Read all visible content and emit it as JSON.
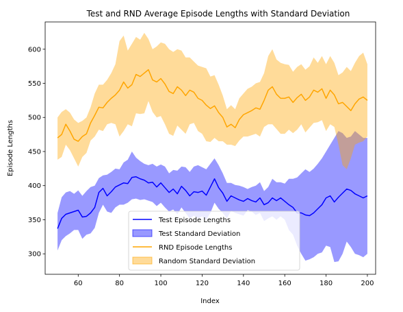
{
  "chart_data": {
    "type": "line",
    "title": "Test and RND Average Episode Lengths with Standard Deviation",
    "xlabel": "Index",
    "ylabel": "Episode Lengths",
    "xlim": [
      44,
      204
    ],
    "ylim": [
      270,
      640
    ],
    "xticks": [
      60,
      80,
      100,
      120,
      140,
      160,
      180,
      200
    ],
    "yticks": [
      300,
      350,
      400,
      450,
      500,
      550,
      600
    ],
    "grid": false,
    "legend_position": "bottom-center",
    "x": [
      50,
      52,
      54,
      56,
      58,
      60,
      62,
      64,
      66,
      68,
      70,
      72,
      74,
      76,
      78,
      80,
      82,
      84,
      86,
      88,
      90,
      92,
      94,
      96,
      98,
      100,
      102,
      104,
      106,
      108,
      110,
      112,
      114,
      116,
      118,
      120,
      122,
      124,
      126,
      128,
      130,
      132,
      134,
      136,
      138,
      140,
      142,
      144,
      146,
      148,
      150,
      152,
      154,
      156,
      158,
      160,
      162,
      164,
      166,
      168,
      170,
      172,
      174,
      176,
      178,
      180,
      182,
      184,
      186,
      188,
      190,
      192,
      194,
      196,
      198,
      200
    ],
    "series": [
      {
        "name": "Test Episode Lengths",
        "kind": "line",
        "color": "#0000ff",
        "values": [
          337,
          352,
          358,
          360,
          362,
          364,
          354,
          355,
          360,
          368,
          390,
          396,
          385,
          391,
          398,
          401,
          404,
          403,
          412,
          413,
          410,
          408,
          404,
          405,
          398,
          404,
          397,
          390,
          395,
          388,
          399,
          393,
          385,
          391,
          390,
          392,
          386,
          398,
          410,
          397,
          389,
          377,
          385,
          382,
          379,
          377,
          381,
          378,
          376,
          382,
          372,
          375,
          382,
          378,
          382,
          377,
          372,
          368,
          360,
          360,
          357,
          356,
          360,
          366,
          372,
          382,
          385,
          376,
          383,
          389,
          395,
          393,
          388,
          385,
          382,
          385
        ]
      },
      {
        "name": " Test Standard Deviation",
        "kind": "band",
        "color": "#0000ff",
        "opacity": 0.4,
        "upper": [
          360,
          383,
          390,
          392,
          388,
          393,
          385,
          392,
          398,
          400,
          411,
          415,
          416,
          420,
          425,
          424,
          434,
          438,
          450,
          441,
          436,
          432,
          430,
          432,
          428,
          431,
          428,
          418,
          423,
          422,
          428,
          427,
          420,
          428,
          430,
          427,
          424,
          432,
          440,
          430,
          418,
          404,
          404,
          401,
          400,
          398,
          395,
          398,
          400,
          405,
          392,
          398,
          410,
          405,
          405,
          403,
          410,
          410,
          412,
          418,
          424,
          420,
          425,
          432,
          440,
          450,
          460,
          470,
          480,
          477,
          470,
          472,
          480,
          475,
          470,
          470
        ],
        "lower": [
          305,
          320,
          326,
          330,
          335,
          335,
          322,
          328,
          330,
          338,
          360,
          372,
          362,
          360,
          368,
          372,
          372,
          375,
          380,
          381,
          379,
          380,
          378,
          376,
          370,
          375,
          368,
          362,
          365,
          358,
          368,
          360,
          352,
          356,
          352,
          355,
          350,
          360,
          375,
          366,
          360,
          352,
          363,
          360,
          358,
          356,
          364,
          362,
          357,
          360,
          348,
          352,
          355,
          350,
          355,
          350,
          335,
          328,
          312,
          300,
          290,
          292,
          295,
          300,
          302,
          312,
          310,
          288,
          289,
          300,
          318,
          310,
          300,
          298,
          295,
          300
        ]
      },
      {
        "name": "RND Episode Lengths",
        "kind": "line",
        "color": "#ffa500",
        "values": [
          470,
          475,
          490,
          480,
          468,
          465,
          472,
          476,
          492,
          503,
          515,
          514,
          522,
          528,
          533,
          540,
          552,
          543,
          548,
          563,
          560,
          565,
          570,
          555,
          552,
          557,
          549,
          538,
          535,
          545,
          540,
          532,
          540,
          537,
          528,
          525,
          518,
          513,
          517,
          507,
          500,
          486,
          490,
          485,
          497,
          504,
          507,
          510,
          514,
          512,
          525,
          540,
          545,
          534,
          528,
          528,
          530,
          522,
          529,
          534,
          525,
          530,
          540,
          537,
          542,
          528,
          540,
          533,
          520,
          522,
          516,
          510,
          520,
          527,
          530,
          525
        ],
        "upper": [
          500,
          508,
          512,
          507,
          497,
          492,
          495,
          500,
          515,
          535,
          548,
          548,
          555,
          565,
          578,
          612,
          620,
          598,
          608,
          618,
          614,
          624,
          615,
          600,
          604,
          610,
          608,
          600,
          596,
          600,
          598,
          588,
          588,
          582,
          576,
          574,
          572,
          560,
          562,
          548,
          532,
          512,
          518,
          512,
          528,
          535,
          542,
          545,
          550,
          552,
          565,
          590,
          600,
          585,
          580,
          578,
          577,
          567,
          574,
          578,
          570,
          575,
          588,
          580,
          590,
          578,
          590,
          580,
          562,
          566,
          574,
          568,
          580,
          590,
          595,
          578
        ],
        "lower": [
          438,
          442,
          460,
          452,
          440,
          428,
          442,
          448,
          466,
          472,
          482,
          480,
          490,
          492,
          490,
          472,
          480,
          490,
          487,
          506,
          505,
          506,
          524,
          508,
          500,
          502,
          490,
          476,
          473,
          488,
          482,
          476,
          490,
          492,
          480,
          476,
          465,
          464,
          470,
          465,
          465,
          460,
          460,
          458,
          466,
          472,
          472,
          474,
          476,
          472,
          486,
          490,
          490,
          483,
          476,
          476,
          482,
          477,
          482,
          490,
          478,
          485,
          492,
          493,
          496,
          480,
          490,
          486,
          460,
          430,
          424,
          440,
          460,
          463,
          465,
          472
        ]
      },
      {
        "name": " Random Standard Deviation",
        "kind": "band",
        "color": "#ffa500",
        "opacity": 0.4
      }
    ]
  }
}
